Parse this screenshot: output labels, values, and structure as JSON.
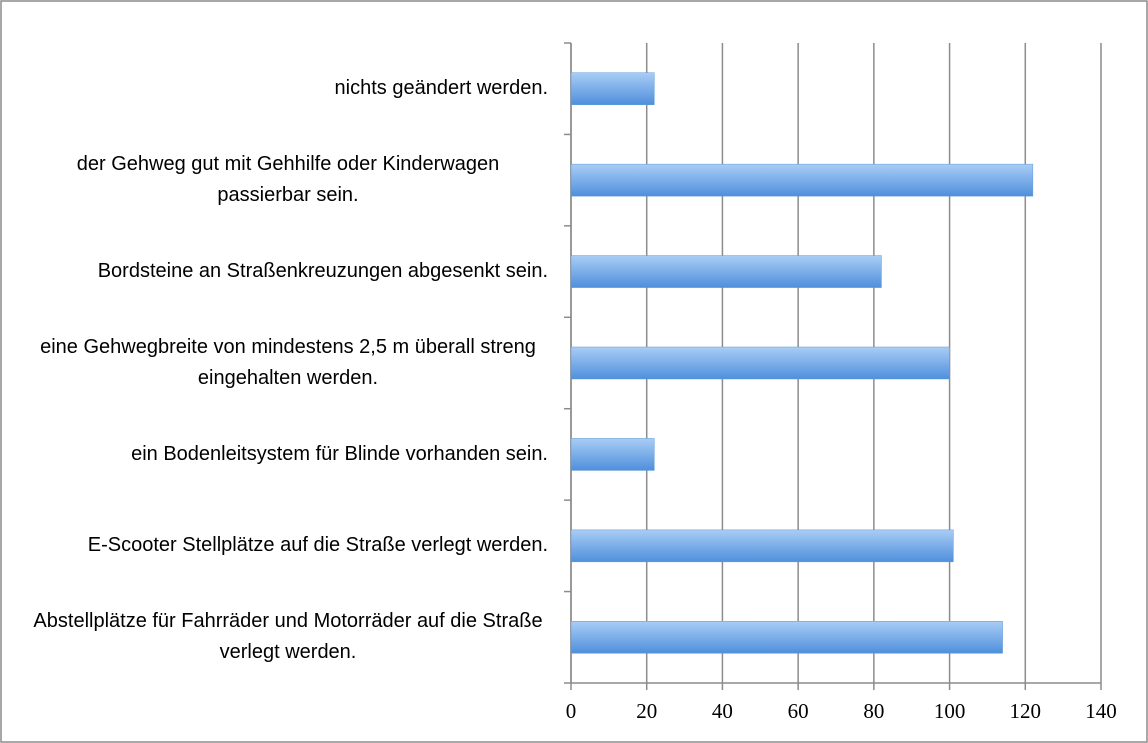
{
  "chart_data": {
    "type": "bar",
    "orientation": "horizontal",
    "categories": [
      "nichts geändert werden.",
      "der Gehweg gut mit Gehhilfe oder Kinderwagen passierbar sein.",
      "Bordsteine an Straßenkreuzungen abgesenkt sein.",
      "eine Gehwegbreite von mindestens 2,5 m überall streng eingehalten werden.",
      "ein Bodenleitsystem für Blinde vorhanden sein.",
      "E-Scooter Stellplätze auf die Straße verlegt werden.",
      "Abstellplätze für Fahrräder und Motorräder auf die Straße verlegt werden."
    ],
    "values": [
      22,
      122,
      82,
      100,
      22,
      101,
      114
    ],
    "color": "#5b9bd5",
    "xlim": [
      0,
      140
    ],
    "xticks": [
      0,
      20,
      40,
      60,
      80,
      100,
      120,
      140
    ],
    "grid": true
  }
}
